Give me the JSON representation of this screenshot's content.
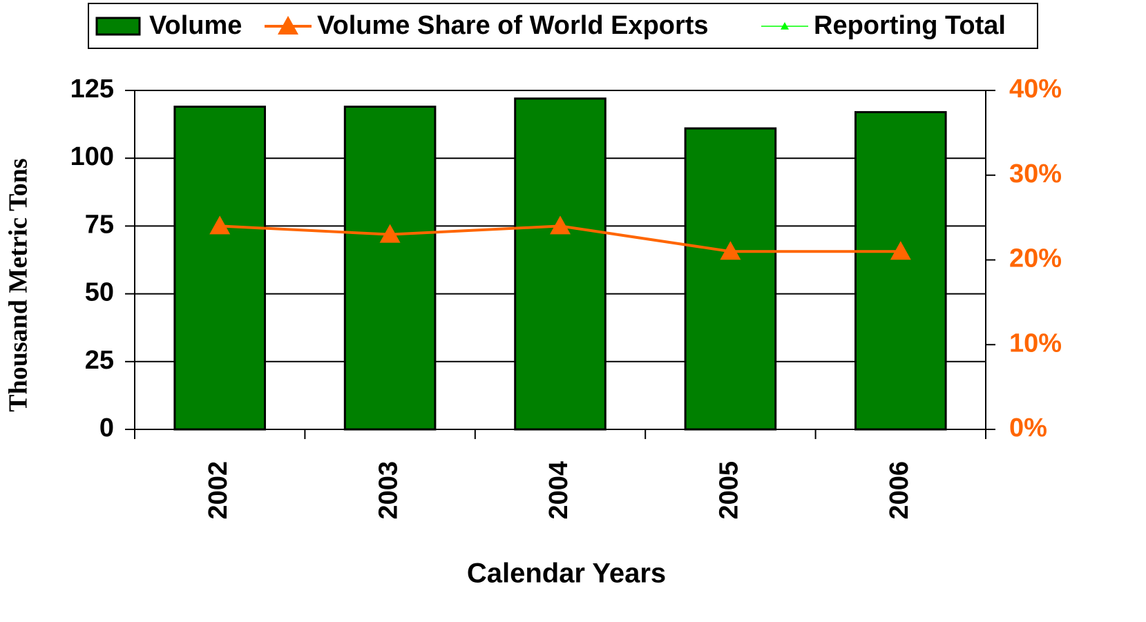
{
  "chart_data": {
    "type": "bar",
    "x_label": "Calendar Years",
    "y_label": "Thousand Metric Tons",
    "categories": [
      "2002",
      "2003",
      "2004",
      "2005",
      "2006"
    ],
    "series": [
      {
        "name": "Volume",
        "type": "bar",
        "color": "#008000",
        "values": [
          119,
          119,
          122,
          111,
          117
        ]
      },
      {
        "name": "Volume Share of World Exports",
        "type": "line",
        "axis": "y2",
        "color": "#ff6600",
        "values": [
          24,
          23,
          24,
          21,
          21
        ]
      },
      {
        "name": "Reporting Total",
        "type": "line",
        "axis": "y2",
        "color": "#00ff00",
        "values": [
          null,
          null,
          null,
          null,
          null
        ]
      }
    ],
    "ylim": [
      0,
      125
    ],
    "yticks": [
      0,
      25,
      50,
      75,
      100,
      125
    ],
    "y2lim": [
      0,
      40
    ],
    "y2ticks": [
      {
        "value": 0,
        "label": "0%"
      },
      {
        "value": 10,
        "label": "10%"
      },
      {
        "value": 20,
        "label": "20%"
      },
      {
        "value": 30,
        "label": "30%"
      },
      {
        "value": 40,
        "label": "40%"
      }
    ],
    "grid": true,
    "legend": "top"
  }
}
